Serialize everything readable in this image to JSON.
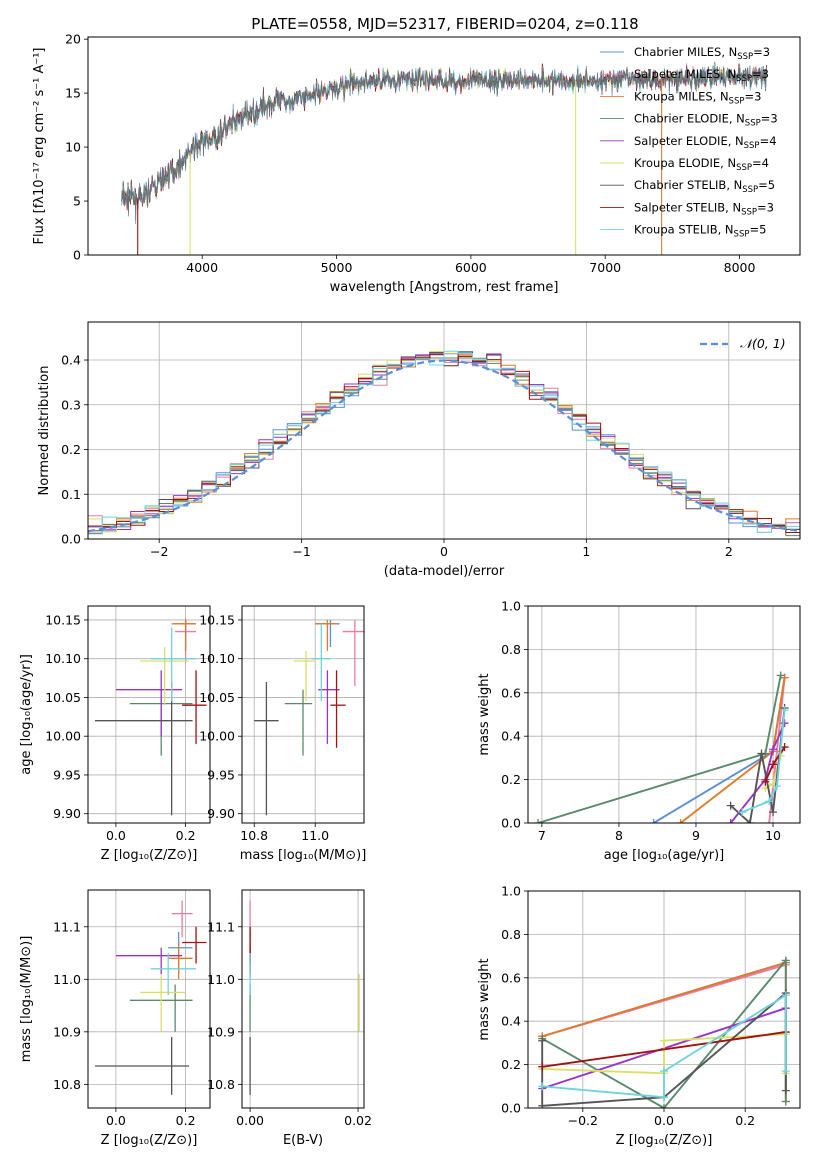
{
  "figure_title": "PLATE=0558, MJD=52317, FIBERID=0204, z=0.118",
  "colors": {
    "chabrier_miles": "#5b8fd9",
    "salpeter_miles": "#e87aa8",
    "kroupa_miles": "#e07b2a",
    "chabrier_elodie": "#5a8a6a",
    "salpeter_elodie": "#9a34c9",
    "kroupa_elodie": "#d8e06a",
    "chabrier_stelib": "#555555",
    "salpeter_stelib": "#a31212",
    "kroupa_stelib": "#6fd3de",
    "normal": "#5b8fd9",
    "grid": "#b0b0b0"
  },
  "chart_data": [
    {
      "id": "spectrum",
      "type": "line",
      "xlabel": "wavelength [Angstrom, rest frame]",
      "ylabel": "Flux [fλ10⁻¹⁷ erg cm⁻² s⁻¹ A⁻¹]",
      "xlim": [
        3150,
        8450
      ],
      "ylim": [
        0,
        20.2
      ],
      "xticks": [
        4000,
        5000,
        6000,
        7000,
        8000
      ],
      "yticks": [
        0,
        5,
        10,
        15,
        20
      ],
      "grid": false,
      "legend_position": "top-right",
      "legend": [
        {
          "key": "chabrier_miles",
          "label": "Chabrier MILES, N",
          "sub": "SSP",
          "tail": "=3"
        },
        {
          "key": "salpeter_miles",
          "label": "Salpeter MILES, N",
          "sub": "SSP",
          "tail": "=3"
        },
        {
          "key": "kroupa_miles",
          "label": "Kroupa MILES, N",
          "sub": "SSP",
          "tail": "=3"
        },
        {
          "key": "chabrier_elodie",
          "label": "Chabrier ELODIE, N",
          "sub": "SSP",
          "tail": "=3"
        },
        {
          "key": "salpeter_elodie",
          "label": "Salpeter ELODIE, N",
          "sub": "SSP",
          "tail": "=4"
        },
        {
          "key": "kroupa_elodie",
          "label": "Kroupa ELODIE, N",
          "sub": "SSP",
          "tail": "=4"
        },
        {
          "key": "chabrier_stelib",
          "label": "Chabrier STELIB, N",
          "sub": "SSP",
          "tail": "=5"
        },
        {
          "key": "salpeter_stelib",
          "label": "Salpeter STELIB, N",
          "sub": "SSP",
          "tail": "=3"
        },
        {
          "key": "kroupa_stelib",
          "label": "Kroupa STELIB, N",
          "sub": "SSP",
          "tail": "=5"
        }
      ],
      "continuum_knots": [
        [
          3400,
          5.3
        ],
        [
          3550,
          5.2
        ],
        [
          3650,
          6.5
        ],
        [
          3800,
          8.0
        ],
        [
          3950,
          10.0
        ],
        [
          4100,
          11.0
        ],
        [
          4300,
          12.8
        ],
        [
          4500,
          14.0
        ],
        [
          4700,
          14.5
        ],
        [
          4900,
          15.2
        ],
        [
          5100,
          15.8
        ],
        [
          5300,
          16.2
        ],
        [
          5500,
          16.3
        ],
        [
          5700,
          16.2
        ],
        [
          5900,
          16.0
        ],
        [
          6100,
          16.1
        ],
        [
          6300,
          16.2
        ],
        [
          6500,
          16.3
        ],
        [
          6700,
          16.1
        ],
        [
          6900,
          16.2
        ],
        [
          7100,
          16.3
        ],
        [
          7300,
          16.2
        ],
        [
          7500,
          16.4
        ],
        [
          7700,
          16.3
        ],
        [
          7900,
          16.5
        ],
        [
          8100,
          16.6
        ],
        [
          8200,
          16.6
        ]
      ],
      "spikes_to_zero": [
        {
          "wavelength": 3520,
          "key": "salpeter_stelib"
        },
        {
          "wavelength": 3910,
          "key": "kroupa_elodie"
        },
        {
          "wavelength": 6780,
          "key": "kroupa_elodie"
        },
        {
          "wavelength": 7420,
          "key": "kroupa_miles"
        }
      ]
    },
    {
      "id": "residuals",
      "type": "step",
      "xlabel": "(data-model)/error",
      "ylabel": "Normed distribution",
      "xlim": [
        -2.5,
        2.5
      ],
      "ylim": [
        0,
        0.485
      ],
      "xticks": [
        -2,
        -1,
        0,
        1,
        2
      ],
      "yticks": [
        0.0,
        0.1,
        0.2,
        0.3,
        0.4
      ],
      "grid": true,
      "legend_position": "top-right",
      "legend_label": "𝒩(0, 1)",
      "bin_edges_start": -2.6,
      "bin_width": 0.1,
      "normal": {
        "mu": 0,
        "sigma": 1
      }
    },
    {
      "id": "age_vs_Z",
      "type": "errorbar",
      "xlabel": "Z [log₁₀(Z/Z⊙)]",
      "ylabel": "age  [log₁₀(age/yr)]",
      "xlim": [
        -0.08,
        0.27
      ],
      "ylim": [
        9.888,
        10.168
      ],
      "xticks": [
        0.0,
        0.2
      ],
      "yticks": [
        9.9,
        9.95,
        10.0,
        10.05,
        10.1,
        10.15
      ],
      "grid": true,
      "points": [
        {
          "key": "chabrier_miles",
          "x": 0.2,
          "y": 10.145,
          "xlo": 0.17,
          "xhi": 0.23,
          "ylo": 10.115,
          "yhi": 10.15
        },
        {
          "key": "salpeter_miles",
          "x": 0.2,
          "y": 10.135,
          "xlo": 0.17,
          "xhi": 0.23,
          "ylo": 10.095,
          "yhi": 10.152
        },
        {
          "key": "kroupa_miles",
          "x": 0.2,
          "y": 10.145,
          "xlo": 0.16,
          "xhi": 0.23,
          "ylo": 10.11,
          "yhi": 10.15
        },
        {
          "key": "chabrier_elodie",
          "x": 0.13,
          "y": 10.042,
          "xlo": 0.04,
          "xhi": 0.22,
          "ylo": 9.975,
          "yhi": 10.06
        },
        {
          "key": "salpeter_elodie",
          "x": 0.13,
          "y": 10.06,
          "xlo": 0.0,
          "xhi": 0.19,
          "ylo": 10.0,
          "yhi": 10.085
        },
        {
          "key": "kroupa_elodie",
          "x": 0.14,
          "y": 10.097,
          "xlo": 0.07,
          "xhi": 0.21,
          "ylo": 10.04,
          "yhi": 10.115
        },
        {
          "key": "chabrier_stelib",
          "x": 0.16,
          "y": 10.02,
          "xlo": -0.06,
          "xhi": 0.22,
          "ylo": 9.898,
          "yhi": 10.07
        },
        {
          "key": "salpeter_stelib",
          "x": 0.23,
          "y": 10.04,
          "xlo": 0.19,
          "xhi": 0.26,
          "ylo": 9.99,
          "yhi": 10.085
        },
        {
          "key": "kroupa_stelib",
          "x": 0.16,
          "y": 10.1,
          "xlo": 0.1,
          "xhi": 0.23,
          "ylo": 10.045,
          "yhi": 10.14
        }
      ]
    },
    {
      "id": "age_vs_mass",
      "type": "errorbar",
      "xlabel": "mass [log₁₀(M/M⊙)]",
      "ylabel": "",
      "xlim": [
        10.76,
        11.16
      ],
      "ylim": [
        9.888,
        10.168
      ],
      "xticks": [
        10.8,
        11.0
      ],
      "yticks": [
        9.9,
        9.95,
        10.0,
        10.05,
        10.1,
        10.15
      ],
      "grid": true,
      "points": [
        {
          "key": "chabrier_miles",
          "x": 11.05,
          "y": 10.145,
          "xlo": 11.0,
          "xhi": 11.08,
          "ylo": 10.115,
          "yhi": 10.15
        },
        {
          "key": "salpeter_miles",
          "x": 11.13,
          "y": 10.135,
          "xlo": 11.09,
          "xhi": 11.16,
          "ylo": 10.065,
          "yhi": 10.15
        },
        {
          "key": "kroupa_miles",
          "x": 11.04,
          "y": 10.145,
          "xlo": 11.0,
          "xhi": 11.07,
          "ylo": 10.11,
          "yhi": 10.15
        },
        {
          "key": "chabrier_elodie",
          "x": 10.96,
          "y": 10.042,
          "xlo": 10.9,
          "xhi": 10.99,
          "ylo": 9.975,
          "yhi": 10.06
        },
        {
          "key": "salpeter_elodie",
          "x": 11.04,
          "y": 10.06,
          "xlo": 11.01,
          "xhi": 11.08,
          "ylo": 9.99,
          "yhi": 10.085
        },
        {
          "key": "kroupa_elodie",
          "x": 10.97,
          "y": 10.097,
          "xlo": 10.93,
          "xhi": 11.0,
          "ylo": 10.045,
          "yhi": 10.11
        },
        {
          "key": "chabrier_stelib",
          "x": 10.84,
          "y": 10.02,
          "xlo": 10.8,
          "xhi": 10.88,
          "ylo": 9.898,
          "yhi": 10.07
        },
        {
          "key": "salpeter_stelib",
          "x": 11.07,
          "y": 10.04,
          "xlo": 11.05,
          "xhi": 11.1,
          "ylo": 9.985,
          "yhi": 10.085
        },
        {
          "key": "kroupa_stelib",
          "x": 11.02,
          "y": 10.1,
          "xlo": 10.99,
          "xhi": 11.05,
          "ylo": 10.045,
          "yhi": 10.145
        }
      ]
    },
    {
      "id": "weight_vs_age",
      "type": "line",
      "xlabel": "age  [log₁₀(age/yr)]",
      "ylabel": "mass weight",
      "xlim": [
        6.82,
        10.35
      ],
      "ylim": [
        0,
        1.0
      ],
      "xticks": [
        7,
        8,
        9,
        10
      ],
      "yticks": [
        0.0,
        0.2,
        0.4,
        0.6,
        0.8,
        1.0
      ],
      "grid": true,
      "series": [
        {
          "key": "chabrier_miles",
          "x": [
            8.45,
            10.0,
            10.15
          ],
          "y": [
            0.0,
            0.33,
            0.67
          ]
        },
        {
          "key": "salpeter_miles",
          "x": [
            9.95,
            10.05,
            10.15
          ],
          "y": [
            0.0,
            0.33,
            0.67
          ]
        },
        {
          "key": "kroupa_miles",
          "x": [
            8.8,
            10.0,
            10.15
          ],
          "y": [
            0.0,
            0.33,
            0.67
          ]
        },
        {
          "key": "chabrier_elodie",
          "x": [
            6.95,
            9.9,
            10.1
          ],
          "y": [
            0.0,
            0.32,
            0.68
          ]
        },
        {
          "key": "salpeter_elodie",
          "x": [
            9.45,
            9.9,
            10.0,
            10.15
          ],
          "y": [
            0.0,
            0.2,
            0.34,
            0.46
          ]
        },
        {
          "key": "kroupa_elodie",
          "x": [
            9.9,
            10.0,
            10.1,
            10.15
          ],
          "y": [
            0.16,
            0.18,
            0.31,
            0.35
          ]
        },
        {
          "key": "chabrier_stelib",
          "x": [
            9.45,
            9.7,
            9.85,
            10.0,
            10.15
          ],
          "y": [
            0.08,
            0.0,
            0.32,
            0.05,
            0.53
          ]
        },
        {
          "key": "salpeter_stelib",
          "x": [
            9.9,
            10.0,
            10.15
          ],
          "y": [
            0.19,
            0.27,
            0.35
          ]
        },
        {
          "key": "kroupa_stelib",
          "x": [
            9.6,
            9.95,
            10.05,
            10.15
          ],
          "y": [
            0.05,
            0.1,
            0.17,
            0.52
          ]
        }
      ]
    },
    {
      "id": "mass_vs_Z",
      "type": "errorbar",
      "xlabel": "Z [log₁₀(Z/Z⊙)]",
      "ylabel": "mass [log₁₀(M/M⊙)]",
      "xlim": [
        -0.08,
        0.27
      ],
      "ylim": [
        10.755,
        11.17
      ],
      "xticks": [
        0.0,
        0.2
      ],
      "yticks": [
        10.8,
        10.9,
        11.0,
        11.1
      ],
      "grid": true,
      "points": [
        {
          "key": "chabrier_miles",
          "x": 0.18,
          "y": 11.06,
          "xlo": 0.15,
          "xhi": 0.22,
          "ylo": 11.01,
          "yhi": 11.09
        },
        {
          "key": "salpeter_miles",
          "x": 0.19,
          "y": 11.125,
          "xlo": 0.16,
          "xhi": 0.22,
          "ylo": 11.08,
          "yhi": 11.15
        },
        {
          "key": "kroupa_miles",
          "x": 0.18,
          "y": 11.04,
          "xlo": 0.15,
          "xhi": 0.22,
          "ylo": 11.0,
          "yhi": 11.07
        },
        {
          "key": "chabrier_elodie",
          "x": 0.17,
          "y": 10.96,
          "xlo": 0.04,
          "xhi": 0.22,
          "ylo": 10.9,
          "yhi": 10.99
        },
        {
          "key": "salpeter_elodie",
          "x": 0.13,
          "y": 11.045,
          "xlo": 0.0,
          "xhi": 0.19,
          "ylo": 11.01,
          "yhi": 11.06
        },
        {
          "key": "kroupa_elodie",
          "x": 0.13,
          "y": 10.975,
          "xlo": 0.07,
          "xhi": 0.2,
          "ylo": 10.9,
          "yhi": 11.01
        },
        {
          "key": "chabrier_stelib",
          "x": 0.16,
          "y": 10.835,
          "xlo": -0.06,
          "xhi": 0.21,
          "ylo": 10.78,
          "yhi": 10.89
        },
        {
          "key": "salpeter_stelib",
          "x": 0.23,
          "y": 11.07,
          "xlo": 0.19,
          "xhi": 0.26,
          "ylo": 11.03,
          "yhi": 11.1
        },
        {
          "key": "kroupa_stelib",
          "x": 0.15,
          "y": 11.02,
          "xlo": 0.1,
          "xhi": 0.23,
          "ylo": 10.97,
          "yhi": 11.05
        }
      ]
    },
    {
      "id": "mass_vs_ebv",
      "type": "errorbar",
      "xlabel": "E(B-V)",
      "ylabel": "",
      "xlim": [
        -0.0015,
        0.0211
      ],
      "ylim": [
        10.755,
        11.17
      ],
      "xticks": [
        0.0,
        0.02
      ],
      "yticks": [
        10.8,
        10.9,
        11.0,
        11.1
      ],
      "grid": true,
      "points": [
        {
          "key": "chabrier_miles",
          "x": 0.0,
          "y": 11.06,
          "xlo": 0.0,
          "xhi": 0.0,
          "ylo": 11.01,
          "yhi": 11.09
        },
        {
          "key": "salpeter_miles",
          "x": 0.0,
          "y": 11.125,
          "xlo": 0.0,
          "xhi": 0.0,
          "ylo": 11.08,
          "yhi": 11.15
        },
        {
          "key": "kroupa_miles",
          "x": 0.0,
          "y": 11.04,
          "xlo": 0.0,
          "xhi": 0.0,
          "ylo": 11.0,
          "yhi": 11.07
        },
        {
          "key": "chabrier_elodie",
          "x": 0.0,
          "y": 10.96,
          "xlo": 0.0,
          "xhi": 0.0,
          "ylo": 10.9,
          "yhi": 10.99
        },
        {
          "key": "salpeter_elodie",
          "x": 0.0,
          "y": 11.045,
          "xlo": 0.0,
          "xhi": 0.0,
          "ylo": 11.01,
          "yhi": 11.06
        },
        {
          "key": "kroupa_elodie",
          "x": 0.0202,
          "y": 10.975,
          "xlo": 0.0202,
          "xhi": 0.0202,
          "ylo": 10.9,
          "yhi": 11.01
        },
        {
          "key": "chabrier_stelib",
          "x": 0.0,
          "y": 10.835,
          "xlo": 0.0,
          "xhi": 0.0,
          "ylo": 10.78,
          "yhi": 10.89
        },
        {
          "key": "salpeter_stelib",
          "x": 0.0,
          "y": 11.07,
          "xlo": 0.0,
          "xhi": 0.0,
          "ylo": 11.03,
          "yhi": 11.1
        },
        {
          "key": "kroupa_stelib",
          "x": 0.0,
          "y": 11.02,
          "xlo": 0.0,
          "xhi": 0.0,
          "ylo": 10.97,
          "yhi": 11.05
        }
      ]
    },
    {
      "id": "weight_vs_Z",
      "type": "line",
      "xlabel": "Z [log₁₀(Z/Z⊙)]",
      "ylabel": "mass weight",
      "xlim": [
        -0.335,
        0.335
      ],
      "ylim": [
        0,
        1.0
      ],
      "xticks": [
        -0.2,
        0.0,
        0.2
      ],
      "yticks": [
        0.0,
        0.2,
        0.4,
        0.6,
        0.8,
        1.0
      ],
      "grid": true,
      "series": [
        {
          "key": "chabrier_miles",
          "x": [
            -0.3,
            0.3
          ],
          "y": [
            0.33,
            0.67
          ]
        },
        {
          "key": "salpeter_miles",
          "x": [
            -0.3,
            0.3
          ],
          "y": [
            0.33,
            0.66
          ]
        },
        {
          "key": "kroupa_miles",
          "x": [
            -0.3,
            0.3,
            0.3
          ],
          "y": [
            0.33,
            0.67,
            0.03
          ]
        },
        {
          "key": "chabrier_elodie",
          "x": [
            -0.3,
            0.0,
            0.3,
            0.3
          ],
          "y": [
            0.32,
            0.0,
            0.68,
            0.03
          ]
        },
        {
          "key": "salpeter_elodie",
          "x": [
            -0.3,
            0.3
          ],
          "y": [
            0.09,
            0.46
          ]
        },
        {
          "key": "kroupa_elodie",
          "x": [
            -0.3,
            0.0,
            0.0,
            0.3,
            0.3
          ],
          "y": [
            0.18,
            0.16,
            0.31,
            0.34,
            0.16
          ]
        },
        {
          "key": "chabrier_stelib",
          "x": [
            -0.3,
            -0.3,
            0.0,
            0.3,
            0.3
          ],
          "y": [
            0.31,
            0.01,
            0.05,
            0.53,
            0.08
          ]
        },
        {
          "key": "salpeter_stelib",
          "x": [
            -0.3,
            0.3
          ],
          "y": [
            0.19,
            0.35
          ]
        },
        {
          "key": "kroupa_stelib",
          "x": [
            -0.3,
            0.0,
            0.0,
            0.3,
            0.3
          ],
          "y": [
            0.1,
            0.05,
            0.17,
            0.52,
            0.17
          ]
        }
      ]
    }
  ]
}
